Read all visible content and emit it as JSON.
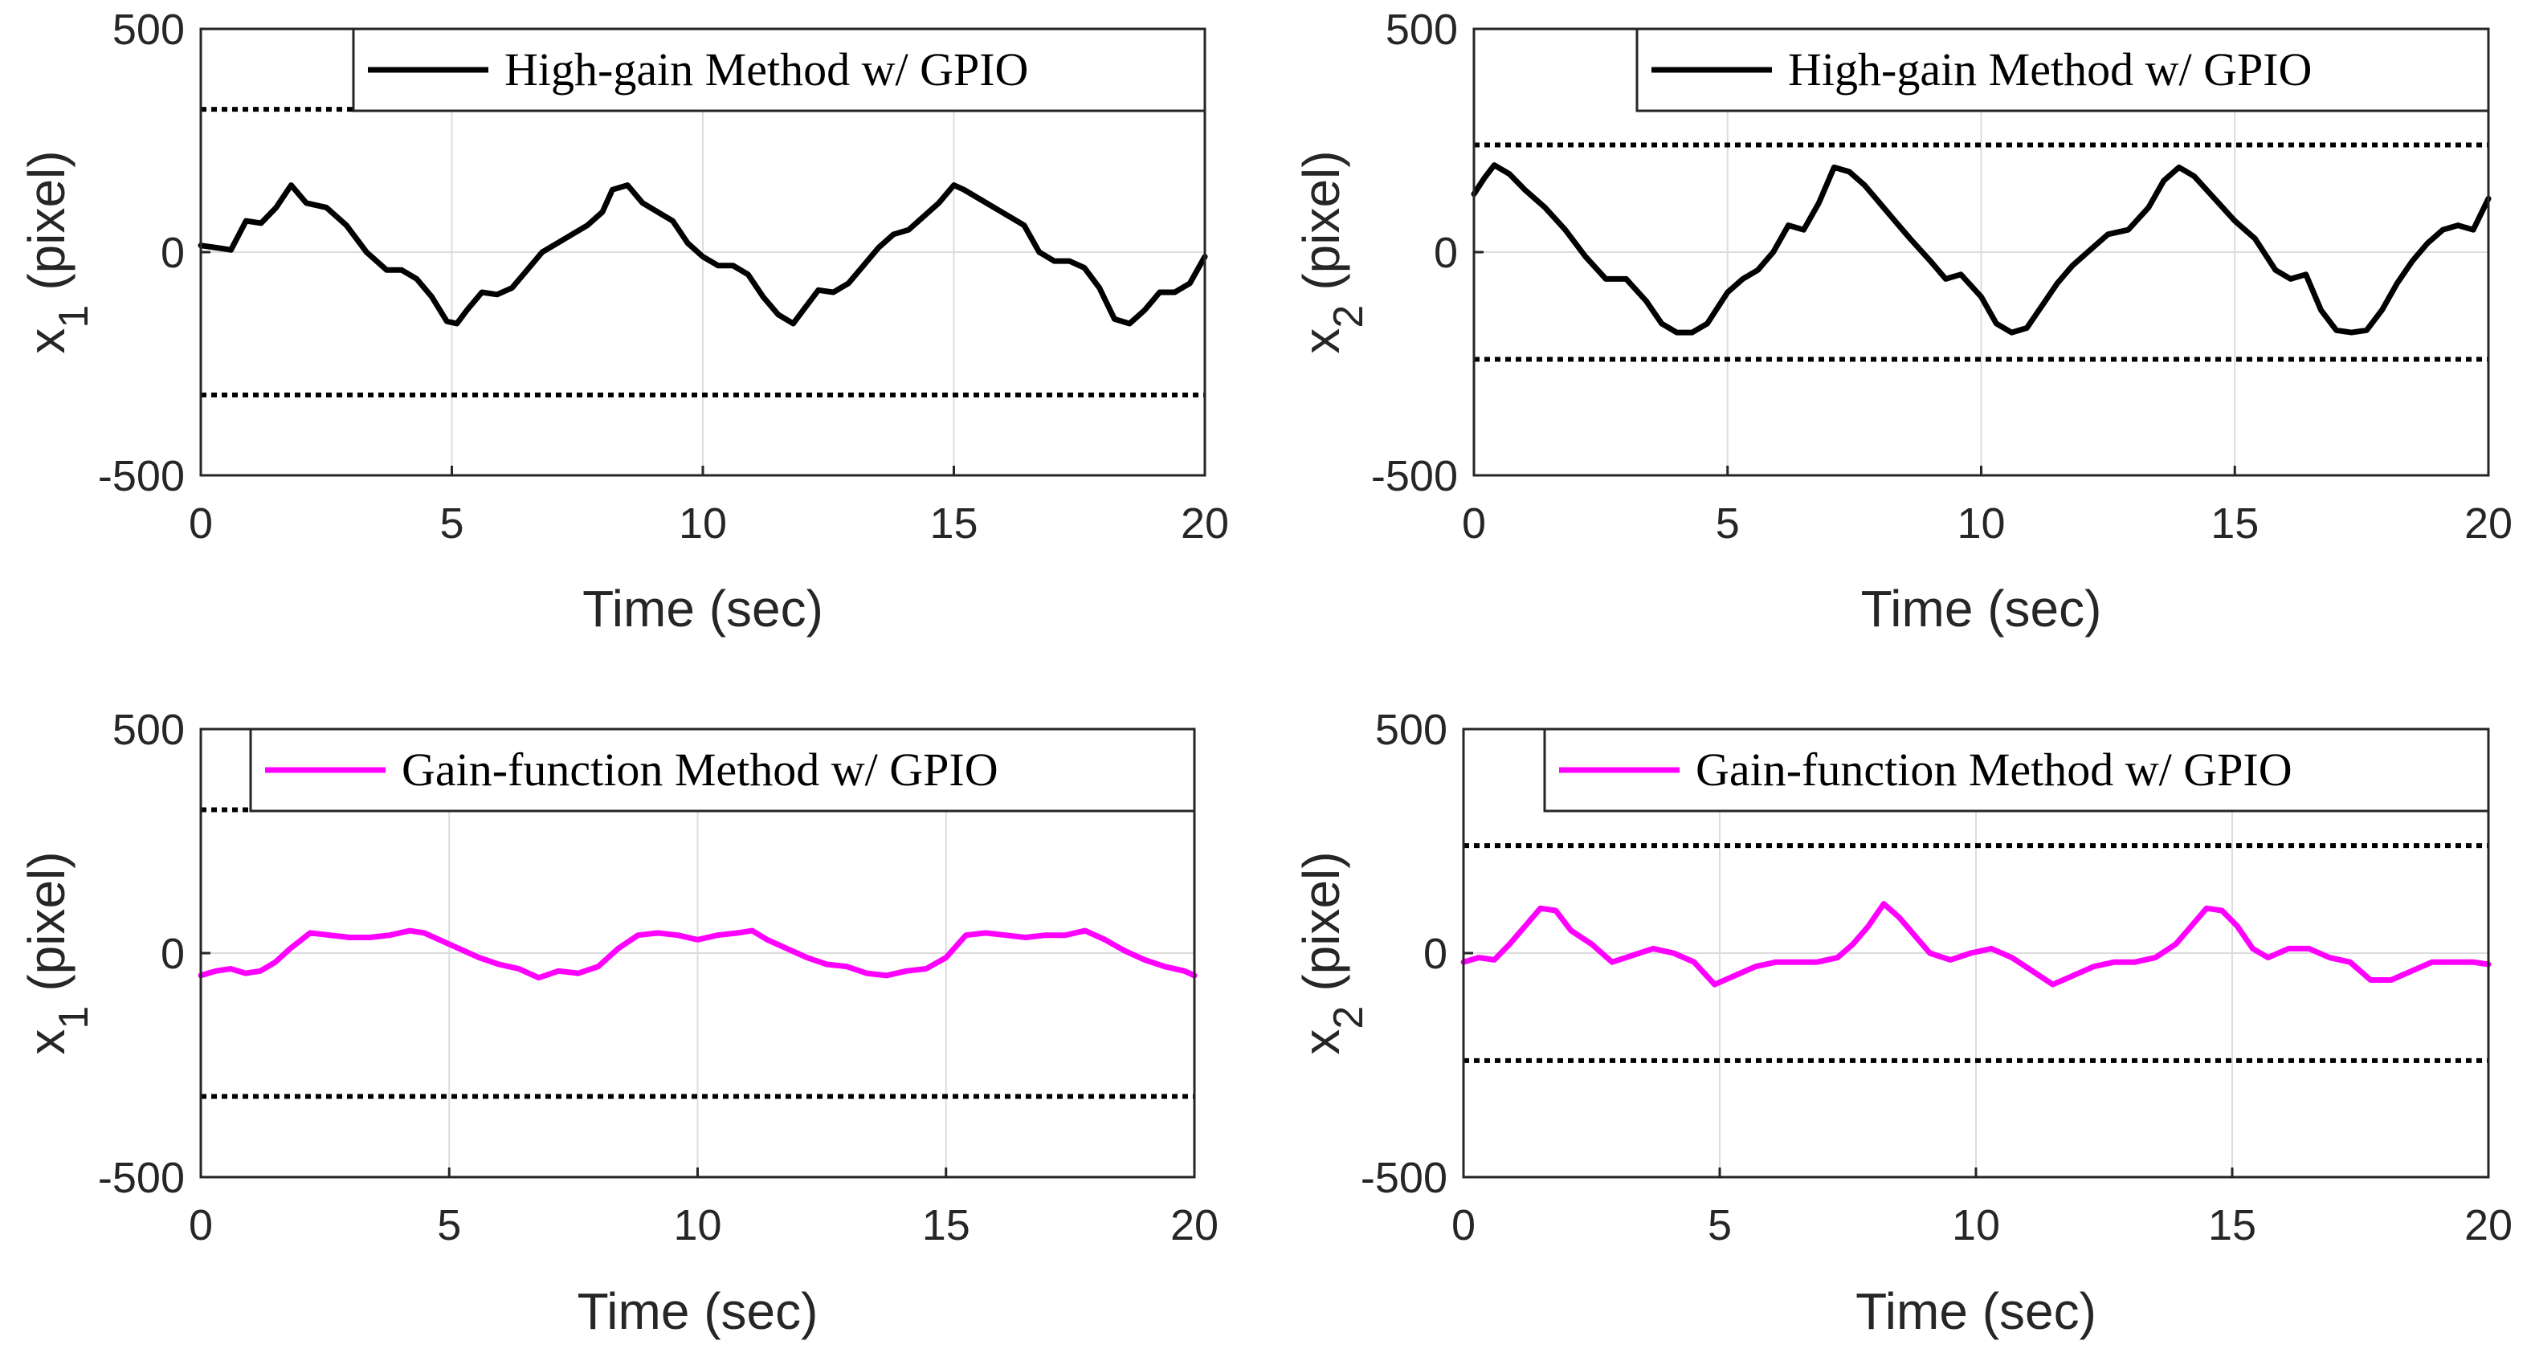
{
  "chart_data": [
    {
      "type": "line",
      "panel": "top-left",
      "xlabel": "Time (sec)",
      "ylabel_main": "x",
      "ylabel_sub": "1",
      "ylabel_unit": "(pixel)",
      "xlim": [
        0,
        20
      ],
      "ylim": [
        -500,
        500
      ],
      "xticks": [
        0,
        5,
        10,
        15,
        20
      ],
      "yticks": [
        -500,
        0,
        500
      ],
      "grid": true,
      "legend": {
        "label": "High-gain Method w/ GPIO",
        "placement": "top-right"
      },
      "bounds": [
        320,
        -320
      ],
      "series": [
        {
          "name": "High-gain Method w/ GPIO",
          "color": "#000000",
          "x": [
            0,
            0.3,
            0.6,
            0.9,
            1.2,
            1.5,
            1.8,
            2.1,
            2.5,
            2.9,
            3.3,
            3.7,
            4.0,
            4.3,
            4.6,
            4.9,
            5.1,
            5.3,
            5.6,
            5.9,
            6.2,
            6.5,
            6.8,
            7.1,
            7.4,
            7.7,
            8.0,
            8.2,
            8.5,
            8.8,
            9.1,
            9.4,
            9.7,
            10.0,
            10.3,
            10.6,
            10.9,
            11.2,
            11.5,
            11.8,
            12.0,
            12.3,
            12.6,
            12.9,
            13.2,
            13.5,
            13.8,
            14.1,
            14.4,
            14.7,
            15.0,
            15.2,
            15.5,
            15.8,
            16.1,
            16.4,
            16.7,
            17.0,
            17.3,
            17.6,
            17.9,
            18.2,
            18.5,
            18.8,
            19.1,
            19.4,
            19.7,
            20.0
          ],
          "y": [
            15,
            10,
            5,
            70,
            65,
            100,
            150,
            110,
            100,
            60,
            0,
            -40,
            -40,
            -60,
            -100,
            -155,
            -160,
            -130,
            -90,
            -95,
            -80,
            -40,
            0,
            20,
            40,
            60,
            90,
            140,
            150,
            110,
            90,
            70,
            20,
            -10,
            -30,
            -30,
            -50,
            -100,
            -140,
            -160,
            -130,
            -85,
            -90,
            -70,
            -30,
            10,
            40,
            50,
            80,
            110,
            150,
            140,
            120,
            100,
            80,
            60,
            0,
            -20,
            -20,
            -35,
            -80,
            -150,
            -160,
            -130,
            -90,
            -90,
            -70,
            -10
          ]
        }
      ]
    },
    {
      "type": "line",
      "panel": "top-right",
      "xlabel": "Time (sec)",
      "ylabel_main": "x",
      "ylabel_sub": "2",
      "ylabel_unit": "(pixel)",
      "xlim": [
        0,
        20
      ],
      "ylim": [
        -500,
        500
      ],
      "xticks": [
        0,
        5,
        10,
        15,
        20
      ],
      "yticks": [
        -500,
        0,
        500
      ],
      "grid": true,
      "legend": {
        "label": "High-gain Method w/ GPIO",
        "placement": "top-right"
      },
      "bounds": [
        240,
        -240
      ],
      "series": [
        {
          "name": "High-gain Method w/ GPIO",
          "color": "#000000",
          "x": [
            0,
            0.2,
            0.4,
            0.7,
            1.0,
            1.4,
            1.8,
            2.2,
            2.6,
            3.0,
            3.4,
            3.7,
            4.0,
            4.3,
            4.6,
            5.0,
            5.3,
            5.6,
            5.9,
            6.2,
            6.5,
            6.8,
            7.1,
            7.4,
            7.7,
            8.0,
            8.3,
            8.6,
            9.0,
            9.3,
            9.6,
            10.0,
            10.3,
            10.6,
            10.9,
            11.2,
            11.5,
            11.8,
            12.1,
            12.5,
            12.9,
            13.3,
            13.6,
            13.9,
            14.2,
            14.6,
            15.0,
            15.4,
            15.8,
            16.1,
            16.4,
            16.7,
            17.0,
            17.3,
            17.6,
            17.9,
            18.2,
            18.5,
            18.8,
            19.1,
            19.4,
            19.7,
            20.0
          ],
          "y": [
            130,
            165,
            195,
            175,
            140,
            100,
            50,
            -10,
            -60,
            -60,
            -110,
            -160,
            -180,
            -180,
            -160,
            -90,
            -60,
            -40,
            0,
            60,
            50,
            110,
            190,
            180,
            150,
            110,
            70,
            30,
            -20,
            -60,
            -50,
            -100,
            -160,
            -180,
            -170,
            -120,
            -70,
            -30,
            0,
            40,
            50,
            100,
            160,
            190,
            170,
            120,
            70,
            30,
            -40,
            -60,
            -50,
            -130,
            -175,
            -180,
            -175,
            -130,
            -70,
            -20,
            20,
            50,
            60,
            50,
            120
          ]
        }
      ]
    },
    {
      "type": "line",
      "panel": "bottom-left",
      "xlabel": "Time (sec)",
      "ylabel_main": "x",
      "ylabel_sub": "1",
      "ylabel_unit": "(pixel)",
      "xlim": [
        0,
        20
      ],
      "ylim": [
        -500,
        500
      ],
      "xticks": [
        0,
        5,
        10,
        15,
        20
      ],
      "yticks": [
        -500,
        0,
        500
      ],
      "grid": true,
      "legend": {
        "label": "Gain-function Method w/ GPIO",
        "placement": "top-right"
      },
      "bounds": [
        320,
        -320
      ],
      "series": [
        {
          "name": "Gain-function Method w/ GPIO",
          "color": "#ff00ff",
          "x": [
            0,
            0.3,
            0.6,
            0.9,
            1.2,
            1.5,
            1.8,
            2.2,
            2.6,
            3.0,
            3.4,
            3.8,
            4.2,
            4.5,
            4.8,
            5.2,
            5.6,
            6.0,
            6.4,
            6.8,
            7.2,
            7.6,
            8.0,
            8.4,
            8.8,
            9.2,
            9.6,
            10.0,
            10.4,
            10.8,
            11.1,
            11.4,
            11.8,
            12.2,
            12.6,
            13.0,
            13.4,
            13.8,
            14.2,
            14.6,
            15.0,
            15.4,
            15.8,
            16.2,
            16.6,
            17.0,
            17.4,
            17.8,
            18.2,
            18.6,
            19.0,
            19.4,
            19.8,
            20.0
          ],
          "y": [
            -50,
            -40,
            -35,
            -45,
            -40,
            -20,
            10,
            45,
            40,
            35,
            35,
            40,
            50,
            45,
            30,
            10,
            -10,
            -25,
            -35,
            -55,
            -40,
            -45,
            -30,
            10,
            40,
            45,
            40,
            30,
            40,
            45,
            50,
            30,
            10,
            -10,
            -25,
            -30,
            -45,
            -50,
            -40,
            -35,
            -10,
            40,
            45,
            40,
            35,
            40,
            40,
            50,
            30,
            5,
            -15,
            -30,
            -40,
            -50
          ]
        }
      ]
    },
    {
      "type": "line",
      "panel": "bottom-right",
      "xlabel": "Time (sec)",
      "ylabel_main": "x",
      "ylabel_sub": "2",
      "ylabel_unit": "(pixel)",
      "xlim": [
        0,
        20
      ],
      "ylim": [
        -500,
        500
      ],
      "xticks": [
        0,
        5,
        10,
        15,
        20
      ],
      "yticks": [
        -500,
        0,
        500
      ],
      "grid": true,
      "legend": {
        "label": "Gain-function Method w/ GPIO",
        "placement": "top-right"
      },
      "bounds": [
        240,
        -240
      ],
      "series": [
        {
          "name": "Gain-function Method w/ GPIO",
          "color": "#ff00ff",
          "x": [
            0,
            0.3,
            0.6,
            0.9,
            1.2,
            1.5,
            1.8,
            2.1,
            2.5,
            2.9,
            3.3,
            3.7,
            4.1,
            4.5,
            4.9,
            5.3,
            5.7,
            6.1,
            6.5,
            6.9,
            7.3,
            7.6,
            7.9,
            8.2,
            8.5,
            8.8,
            9.1,
            9.5,
            9.9,
            10.3,
            10.7,
            11.1,
            11.5,
            11.9,
            12.3,
            12.7,
            13.1,
            13.5,
            13.9,
            14.2,
            14.5,
            14.8,
            15.1,
            15.4,
            15.7,
            16.1,
            16.5,
            16.9,
            17.3,
            17.7,
            18.1,
            18.5,
            18.9,
            19.3,
            19.7,
            20.0
          ],
          "y": [
            -20,
            -10,
            -15,
            20,
            60,
            100,
            95,
            50,
            20,
            -20,
            -5,
            10,
            0,
            -20,
            -70,
            -50,
            -30,
            -20,
            -20,
            -20,
            -10,
            20,
            60,
            110,
            80,
            40,
            0,
            -15,
            0,
            10,
            -10,
            -40,
            -70,
            -50,
            -30,
            -20,
            -20,
            -10,
            20,
            60,
            100,
            95,
            60,
            10,
            -10,
            10,
            10,
            -10,
            -20,
            -60,
            -60,
            -40,
            -20,
            -20,
            -20,
            -25
          ]
        }
      ]
    }
  ]
}
